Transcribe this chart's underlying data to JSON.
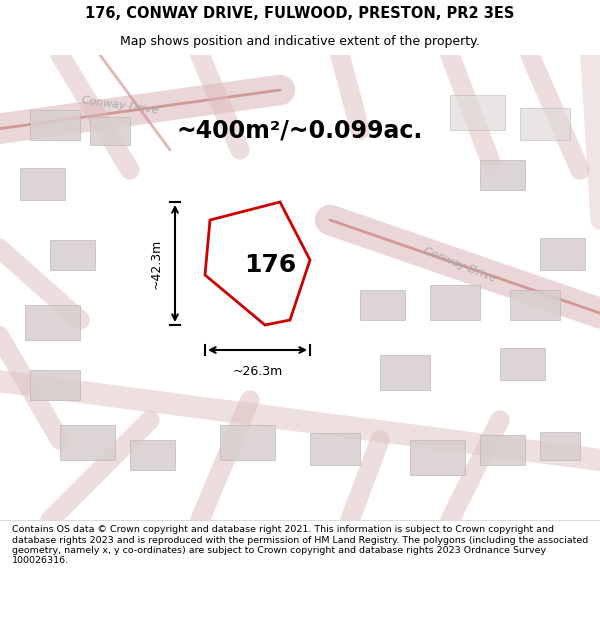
{
  "title_line1": "176, CONWAY DRIVE, FULWOOD, PRESTON, PR2 3ES",
  "title_line2": "Map shows position and indicative extent of the property.",
  "area_text": "~400m²/~0.099ac.",
  "property_number": "176",
  "dim_horizontal": "~26.3m",
  "dim_vertical": "~42.3m",
  "footer_text": "Contains OS data © Crown copyright and database right 2021. This information is subject to Crown copyright and database rights 2023 and is reproduced with the permission of HM Land Registry. The polygons (including the associated geometry, namely x, y co-ordinates) are subject to Crown copyright and database rights 2023 Ordnance Survey 100026316.",
  "bg_color": "#f5f0f0",
  "map_bg": "#f0ebe8",
  "property_fill": "white",
  "property_edge": "#cc0000",
  "road_color": "#e8a0a0",
  "building_color": "#d8cece",
  "road_label_color": "#aaaaaa",
  "title_bg": "white",
  "footer_bg": "white"
}
